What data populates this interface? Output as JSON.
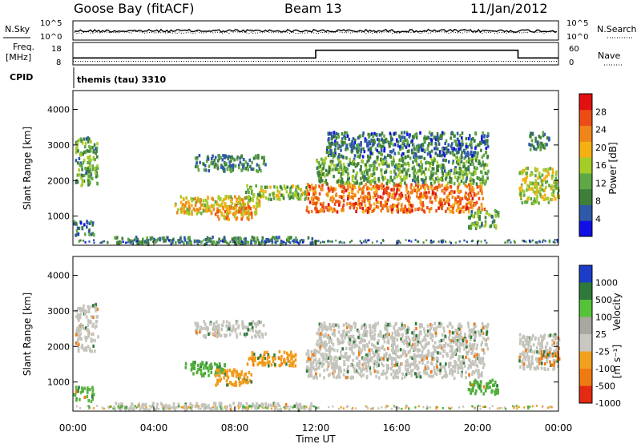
{
  "header": {
    "station": "Goose Bay (fitACF)",
    "beam": "Beam 13",
    "date": "11/Jan/2012"
  },
  "labels": {
    "nsky": "N.Sky",
    "freq_line1": "Freq.",
    "freq_line2": "[MHz]",
    "cpid": "CPID",
    "nsearch": "N.Search",
    "nave": "Nave",
    "cpid_value": "themis (tau) 3310"
  },
  "chart_data": [
    {
      "type": "line",
      "panel": "noise",
      "left_axis_ticks": [
        "10^5",
        "10^0"
      ],
      "right_axis_ticks": [
        "10^5",
        "10^0"
      ],
      "series": [
        {
          "name": "N.Sky",
          "style": "solid"
        },
        {
          "name": "N.Search",
          "style": "dotted"
        }
      ]
    },
    {
      "type": "line",
      "panel": "frequency",
      "left_ylim": [
        8,
        18
      ],
      "left_ticks": [
        "18",
        "8"
      ],
      "right_ylim": [
        0,
        60
      ],
      "right_ticks": [
        "60",
        "0"
      ],
      "series": [
        {
          "name": "Freq.",
          "style": "solid",
          "x_hours": [
            0,
            12.0,
            12.0,
            22.0,
            22.0,
            24
          ],
          "y": [
            10.8,
            10.8,
            14.8,
            14.8,
            10.8,
            10.8
          ]
        },
        {
          "name": "Nave",
          "style": "dotted",
          "x_hours": [
            0,
            24
          ],
          "y": [
            9.0,
            9.0
          ]
        }
      ]
    },
    {
      "type": "heatmap",
      "panel": "power",
      "ylabel": "Slant Range [km]",
      "y_ticks": [
        "1000",
        "2000",
        "3000",
        "4000"
      ],
      "ylim": [
        180,
        4530
      ],
      "xlim_hours": [
        0,
        24
      ],
      "colorbar_label": "Power [dB]",
      "colorbar_ticks": [
        "4",
        "8",
        "12",
        "16",
        "20",
        "24",
        "28"
      ],
      "colorbar_colors": [
        "#1010e6",
        "#2e58a8",
        "#3e7f3a",
        "#5fa846",
        "#a6cc2a",
        "#f5b014",
        "#f0861a",
        "#ec4d16",
        "#e21010"
      ],
      "regions": [
        {
          "t0": 0.1,
          "t1": 1.2,
          "r0": 1900,
          "r1": 3250,
          "level": 0.35
        },
        {
          "t0": 0.0,
          "t1": 1.0,
          "r0": 500,
          "r1": 900,
          "level": 0.2
        },
        {
          "t0": 2.0,
          "t1": 12.0,
          "r0": 250,
          "r1": 450,
          "level": 0.25
        },
        {
          "t0": 5.0,
          "t1": 9.2,
          "r0": 1100,
          "r1": 1600,
          "level": 0.6
        },
        {
          "t0": 7.0,
          "t1": 8.8,
          "r0": 950,
          "r1": 1400,
          "level": 0.7
        },
        {
          "t0": 6.0,
          "t1": 9.5,
          "r0": 2300,
          "r1": 2750,
          "level": 0.25
        },
        {
          "t0": 8.5,
          "t1": 11.5,
          "r0": 1500,
          "r1": 1900,
          "level": 0.45
        },
        {
          "t0": 11.5,
          "t1": 20.3,
          "r0": 1150,
          "r1": 1950,
          "level": 0.8
        },
        {
          "t0": 12.0,
          "t1": 20.5,
          "r0": 1950,
          "r1": 2700,
          "level": 0.35
        },
        {
          "t0": 12.5,
          "t1": 20.5,
          "r0": 2700,
          "r1": 3400,
          "level": 0.2
        },
        {
          "t0": 19.5,
          "t1": 21.0,
          "r0": 700,
          "r1": 1200,
          "level": 0.35
        },
        {
          "t0": 22.0,
          "t1": 24.0,
          "r0": 1400,
          "r1": 2400,
          "level": 0.5
        },
        {
          "t0": 22.5,
          "t1": 23.5,
          "r0": 2900,
          "r1": 3400,
          "level": 0.25
        }
      ]
    },
    {
      "type": "heatmap",
      "panel": "velocity",
      "ylabel": "Slant Range [km]",
      "y_ticks": [
        "1000",
        "2000",
        "3000",
        "4000"
      ],
      "ylim": [
        180,
        4530
      ],
      "xlabel": "Time UT",
      "x_ticks": [
        "00:00",
        "04:00",
        "08:00",
        "12:00",
        "16:00",
        "20:00",
        "00:00"
      ],
      "xlim_hours": [
        0,
        24
      ],
      "colorbar_label": "Velocity",
      "colorbar_unit": "[m s⁻¹]",
      "colorbar_ticks": [
        "1000",
        "500",
        "100",
        "25",
        "-25",
        "-100",
        "-500",
        "-1000"
      ],
      "colorbar_colors": [
        "#1b3dc8",
        "#2f7a3a",
        "#56c23a",
        "#a8a8a0",
        "#c8c8c0",
        "#f2a01e",
        "#f07a12",
        "#e42a10"
      ],
      "regions": [
        {
          "t0": 0.1,
          "t1": 1.2,
          "r0": 1900,
          "r1": 3250,
          "color": "#c4c4bc"
        },
        {
          "t0": 0.0,
          "t1": 1.0,
          "r0": 500,
          "r1": 900,
          "color": "#5ab444"
        },
        {
          "t0": 2.0,
          "t1": 12.0,
          "r0": 250,
          "r1": 450,
          "color": "#c4c4bc"
        },
        {
          "t0": 5.5,
          "t1": 7.5,
          "r0": 1200,
          "r1": 1600,
          "color": "#4fae3c"
        },
        {
          "t0": 7.0,
          "t1": 8.8,
          "r0": 950,
          "r1": 1400,
          "color": "#f29b1a"
        },
        {
          "t0": 8.5,
          "t1": 11.0,
          "r0": 1500,
          "r1": 1900,
          "color": "#f29b1a"
        },
        {
          "t0": 6.0,
          "t1": 9.5,
          "r0": 2300,
          "r1": 2750,
          "color": "#c4c4bc"
        },
        {
          "t0": 11.5,
          "t1": 20.3,
          "r0": 1150,
          "r1": 1950,
          "color": "#c4c4bc"
        },
        {
          "t0": 12.0,
          "t1": 20.5,
          "r0": 1950,
          "r1": 2700,
          "color": "#c4c4bc"
        },
        {
          "t0": 19.5,
          "t1": 21.0,
          "r0": 700,
          "r1": 1100,
          "color": "#4fae3c"
        },
        {
          "t0": 22.0,
          "t1": 24.0,
          "r0": 1400,
          "r1": 2400,
          "color": "#c4c4bc"
        },
        {
          "t0": 23.0,
          "t1": 24.0,
          "r0": 1500,
          "r1": 1900,
          "color": "#f07a12"
        }
      ]
    }
  ]
}
